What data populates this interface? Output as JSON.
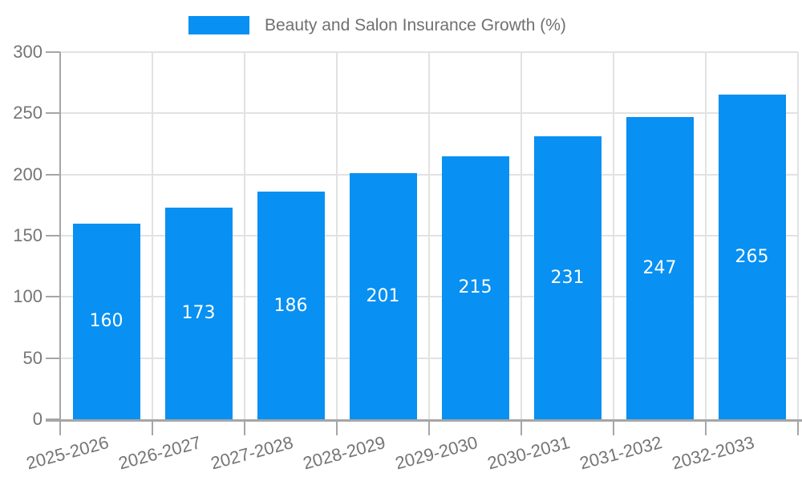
{
  "chart_data": {
    "type": "bar",
    "title": "Beauty and Salon Insurance Growth (%)",
    "legend": [
      "Beauty and Salon Insurance Growth (%)"
    ],
    "legend_position": "top",
    "categories": [
      "2025-2026",
      "2026-2027",
      "2027-2028",
      "2028-2029",
      "2029-2030",
      "2030-2031",
      "2031-2032",
      "2032-2033"
    ],
    "values": [
      160,
      173,
      186,
      201,
      215,
      231,
      247,
      265
    ],
    "xlabel": "",
    "ylabel": "",
    "ylim": [
      0,
      300
    ],
    "yticks": [
      0,
      50,
      100,
      150,
      200,
      250,
      300
    ],
    "grid": true,
    "x_label_rotation_deg": -15,
    "value_labels_position": "center-of-bar",
    "colors": {
      "bar": "#0890F2",
      "value_label": "#FFFFFF",
      "axis": "#A6A6A6",
      "tick": "#A6A6A6",
      "gridline": "#E2E2E2",
      "tick_label": "#757575",
      "legend_text": "#707070",
      "background": "#FFFFFF"
    }
  }
}
